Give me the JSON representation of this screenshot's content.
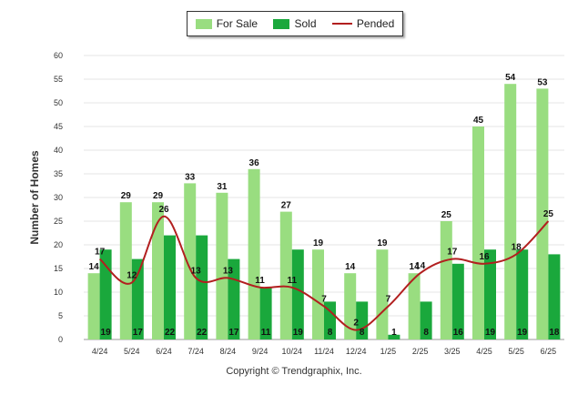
{
  "legend": {
    "for_sale": "For Sale",
    "sold": "Sold",
    "pended": "Pended"
  },
  "copyright": "Copyright © Trendgraphix, Inc.",
  "colors": {
    "for_sale": "#99dd80",
    "sold": "#1aa83c",
    "pended": "#b21f1f",
    "grid": "#e6e6e6",
    "axis_text": "#333333"
  },
  "chart_data": {
    "type": "bar",
    "ylabel": "Number of Homes",
    "xlabel": "",
    "ylim": [
      0,
      60
    ],
    "yticks": [
      0,
      5,
      10,
      15,
      20,
      25,
      30,
      35,
      40,
      45,
      50,
      55,
      60
    ],
    "grid": true,
    "legend_position": "top-center",
    "categories": [
      "4/24",
      "5/24",
      "6/24",
      "7/24",
      "8/24",
      "9/24",
      "10/24",
      "11/24",
      "12/24",
      "1/25",
      "2/25",
      "3/25",
      "4/25",
      "5/25",
      "6/25"
    ],
    "series": [
      {
        "name": "For Sale",
        "type": "bar",
        "values": [
          14,
          29,
          29,
          33,
          31,
          36,
          27,
          19,
          14,
          19,
          14,
          25,
          45,
          54,
          53
        ]
      },
      {
        "name": "Sold",
        "type": "bar",
        "values": [
          19,
          17,
          22,
          22,
          17,
          11,
          19,
          8,
          8,
          1,
          8,
          16,
          19,
          19,
          18
        ]
      },
      {
        "name": "Pended",
        "type": "line",
        "values": [
          17,
          12,
          26,
          13,
          13,
          11,
          11,
          7,
          2,
          7,
          14,
          17,
          16,
          18,
          25
        ]
      }
    ]
  }
}
